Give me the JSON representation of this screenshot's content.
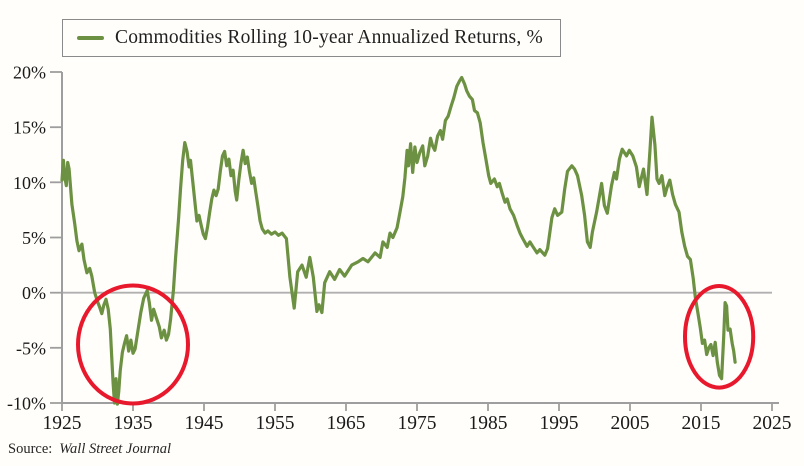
{
  "legend": {
    "label": "Commodities Rolling 10-year Annualized Returns, %"
  },
  "source": {
    "prefix": "Source:",
    "name": "Wall Street Journal"
  },
  "colors": {
    "line": "#6d9142",
    "annotation": "#e8192d",
    "axis": "#9e9e9e",
    "zero_line": "#b0b0b0",
    "text": "#1a1a1a",
    "background": "#fffefa"
  },
  "chart_data": {
    "type": "line",
    "title": "Commodities Rolling 10-year Annualized Returns, %",
    "xlabel": "",
    "ylabel": "",
    "x_range": [
      1925,
      2025
    ],
    "y_range": [
      -10,
      20
    ],
    "x_ticks": [
      1925,
      1935,
      1945,
      1955,
      1965,
      1975,
      1985,
      1995,
      2005,
      2015,
      2025
    ],
    "y_ticks": [
      {
        "value": 20,
        "label": "20%"
      },
      {
        "value": 15,
        "label": "15%"
      },
      {
        "value": 10,
        "label": "10%"
      },
      {
        "value": 5,
        "label": "5%"
      },
      {
        "value": 0,
        "label": "0%"
      },
      {
        "value": -5,
        "label": "-5%"
      },
      {
        "value": -10,
        "label": "-10%"
      }
    ],
    "grid": "zero-line-only",
    "legend_position": "top-left",
    "series": [
      {
        "name": "Commodities Rolling 10-year Annualized Returns, %",
        "color": "#6d9142",
        "points": [
          [
            1925.0,
            10.2
          ],
          [
            1925.2,
            12.0
          ],
          [
            1925.4,
            10.5
          ],
          [
            1925.6,
            9.7
          ],
          [
            1925.8,
            11.8
          ],
          [
            1926.0,
            11.2
          ],
          [
            1926.4,
            8.0
          ],
          [
            1926.8,
            6.2
          ],
          [
            1927.1,
            4.7
          ],
          [
            1927.4,
            3.8
          ],
          [
            1927.8,
            4.4
          ],
          [
            1928.1,
            3.0
          ],
          [
            1928.5,
            1.8
          ],
          [
            1928.9,
            2.2
          ],
          [
            1929.2,
            1.5
          ],
          [
            1929.6,
            0.0
          ],
          [
            1930.0,
            -0.8
          ],
          [
            1930.3,
            -1.3
          ],
          [
            1930.6,
            -1.9
          ],
          [
            1930.9,
            -1.1
          ],
          [
            1931.2,
            -0.6
          ],
          [
            1931.5,
            -1.5
          ],
          [
            1931.8,
            -3.3
          ],
          [
            1932.0,
            -5.8
          ],
          [
            1932.2,
            -8.2
          ],
          [
            1932.4,
            -10.0
          ],
          [
            1932.6,
            -7.8
          ],
          [
            1932.8,
            -10.1
          ],
          [
            1933.0,
            -8.9
          ],
          [
            1933.2,
            -7.1
          ],
          [
            1933.5,
            -5.4
          ],
          [
            1933.8,
            -4.6
          ],
          [
            1934.1,
            -3.9
          ],
          [
            1934.4,
            -5.3
          ],
          [
            1934.7,
            -4.3
          ],
          [
            1935.0,
            -5.5
          ],
          [
            1935.3,
            -5.1
          ],
          [
            1935.7,
            -3.4
          ],
          [
            1936.1,
            -1.8
          ],
          [
            1936.5,
            -0.5
          ],
          [
            1937.0,
            0.2
          ],
          [
            1937.3,
            -0.9
          ],
          [
            1937.6,
            -2.5
          ],
          [
            1937.9,
            -1.5
          ],
          [
            1938.3,
            -2.3
          ],
          [
            1938.7,
            -3.1
          ],
          [
            1939.0,
            -4.1
          ],
          [
            1939.4,
            -3.4
          ],
          [
            1939.7,
            -4.3
          ],
          [
            1940.0,
            -3.8
          ],
          [
            1940.3,
            -2.4
          ],
          [
            1940.7,
            0.3
          ],
          [
            1941.0,
            3.2
          ],
          [
            1941.4,
            6.5
          ],
          [
            1941.7,
            9.5
          ],
          [
            1942.0,
            12.0
          ],
          [
            1942.3,
            13.6
          ],
          [
            1942.6,
            12.8
          ],
          [
            1942.9,
            11.4
          ],
          [
            1943.1,
            12.0
          ],
          [
            1943.4,
            10.2
          ],
          [
            1943.7,
            8.3
          ],
          [
            1944.0,
            6.5
          ],
          [
            1944.3,
            7.0
          ],
          [
            1944.6,
            6.1
          ],
          [
            1944.9,
            5.3
          ],
          [
            1945.2,
            4.9
          ],
          [
            1945.5,
            6.0
          ],
          [
            1945.8,
            7.3
          ],
          [
            1946.1,
            8.5
          ],
          [
            1946.4,
            9.3
          ],
          [
            1946.7,
            8.8
          ],
          [
            1947.0,
            9.4
          ],
          [
            1947.3,
            11.0
          ],
          [
            1947.6,
            12.4
          ],
          [
            1947.9,
            12.8
          ],
          [
            1948.2,
            11.5
          ],
          [
            1948.5,
            12.1
          ],
          [
            1948.8,
            10.6
          ],
          [
            1949.1,
            11.1
          ],
          [
            1949.4,
            9.2
          ],
          [
            1949.6,
            8.4
          ],
          [
            1949.9,
            10.2
          ],
          [
            1950.2,
            11.7
          ],
          [
            1950.5,
            12.9
          ],
          [
            1950.8,
            11.7
          ],
          [
            1951.1,
            12.3
          ],
          [
            1951.4,
            11.0
          ],
          [
            1951.7,
            9.9
          ],
          [
            1952.0,
            10.4
          ],
          [
            1952.3,
            9.1
          ],
          [
            1952.6,
            7.8
          ],
          [
            1952.9,
            6.5
          ],
          [
            1953.2,
            5.8
          ],
          [
            1953.6,
            5.4
          ],
          [
            1954.0,
            5.6
          ],
          [
            1954.5,
            5.3
          ],
          [
            1955.0,
            5.5
          ],
          [
            1955.5,
            5.2
          ],
          [
            1956.0,
            5.4
          ],
          [
            1956.6,
            4.9
          ],
          [
            1957.1,
            1.4
          ],
          [
            1957.7,
            -1.4
          ],
          [
            1958.2,
            1.9
          ],
          [
            1958.8,
            2.5
          ],
          [
            1959.4,
            1.4
          ],
          [
            1959.9,
            3.2
          ],
          [
            1960.4,
            1.4
          ],
          [
            1960.9,
            -1.7
          ],
          [
            1961.2,
            -1.1
          ],
          [
            1961.6,
            -1.8
          ],
          [
            1962.0,
            0.9
          ],
          [
            1962.7,
            1.9
          ],
          [
            1963.4,
            1.2
          ],
          [
            1964.1,
            2.1
          ],
          [
            1964.8,
            1.5
          ],
          [
            1965.8,
            2.5
          ],
          [
            1966.7,
            2.8
          ],
          [
            1967.4,
            3.1
          ],
          [
            1968.1,
            2.8
          ],
          [
            1969.1,
            3.6
          ],
          [
            1969.8,
            3.2
          ],
          [
            1970.2,
            4.6
          ],
          [
            1970.8,
            4.1
          ],
          [
            1971.2,
            5.4
          ],
          [
            1971.6,
            5.0
          ],
          [
            1972.2,
            5.9
          ],
          [
            1972.6,
            7.3
          ],
          [
            1973.0,
            8.7
          ],
          [
            1973.3,
            10.4
          ],
          [
            1973.6,
            12.9
          ],
          [
            1973.8,
            11.5
          ],
          [
            1974.1,
            13.5
          ],
          [
            1974.4,
            10.9
          ],
          [
            1974.7,
            13.2
          ],
          [
            1975.0,
            11.8
          ],
          [
            1975.4,
            12.7
          ],
          [
            1975.8,
            13.3
          ],
          [
            1976.1,
            11.5
          ],
          [
            1976.5,
            12.4
          ],
          [
            1976.9,
            14.0
          ],
          [
            1977.2,
            13.3
          ],
          [
            1977.5,
            12.9
          ],
          [
            1977.9,
            14.2
          ],
          [
            1978.3,
            14.7
          ],
          [
            1978.6,
            13.9
          ],
          [
            1979.0,
            15.6
          ],
          [
            1979.4,
            16.0
          ],
          [
            1979.8,
            16.9
          ],
          [
            1980.2,
            17.7
          ],
          [
            1980.6,
            18.7
          ],
          [
            1981.0,
            19.2
          ],
          [
            1981.3,
            19.5
          ],
          [
            1981.7,
            18.9
          ],
          [
            1982.0,
            18.3
          ],
          [
            1982.4,
            17.8
          ],
          [
            1982.8,
            17.5
          ],
          [
            1983.1,
            16.5
          ],
          [
            1983.5,
            16.3
          ],
          [
            1983.9,
            15.4
          ],
          [
            1984.3,
            13.6
          ],
          [
            1984.7,
            12.1
          ],
          [
            1985.1,
            10.6
          ],
          [
            1985.4,
            9.9
          ],
          [
            1985.9,
            10.3
          ],
          [
            1986.3,
            9.6
          ],
          [
            1986.6,
            9.9
          ],
          [
            1987.0,
            9.0
          ],
          [
            1987.4,
            8.2
          ],
          [
            1987.7,
            8.5
          ],
          [
            1988.1,
            7.6
          ],
          [
            1988.6,
            7.0
          ],
          [
            1989.1,
            6.1
          ],
          [
            1989.5,
            5.4
          ],
          [
            1989.9,
            4.9
          ],
          [
            1990.5,
            4.2
          ],
          [
            1990.9,
            4.6
          ],
          [
            1991.3,
            4.2
          ],
          [
            1991.9,
            3.6
          ],
          [
            1992.3,
            3.9
          ],
          [
            1993.0,
            3.4
          ],
          [
            1993.4,
            4.0
          ],
          [
            1994.0,
            6.8
          ],
          [
            1994.4,
            7.6
          ],
          [
            1994.8,
            7.0
          ],
          [
            1995.4,
            7.3
          ],
          [
            1995.8,
            9.4
          ],
          [
            1996.2,
            11.0
          ],
          [
            1996.8,
            11.5
          ],
          [
            1997.2,
            11.2
          ],
          [
            1997.6,
            10.6
          ],
          [
            1998.2,
            8.8
          ],
          [
            1998.6,
            7.0
          ],
          [
            1999.0,
            4.6
          ],
          [
            1999.4,
            4.1
          ],
          [
            1999.7,
            5.5
          ],
          [
            2000.3,
            7.3
          ],
          [
            2000.7,
            8.8
          ],
          [
            2001.0,
            9.9
          ],
          [
            2001.4,
            7.9
          ],
          [
            2001.8,
            7.2
          ],
          [
            2002.4,
            9.7
          ],
          [
            2002.8,
            10.9
          ],
          [
            2003.1,
            10.3
          ],
          [
            2003.5,
            12.1
          ],
          [
            2003.9,
            13.0
          ],
          [
            2004.5,
            12.4
          ],
          [
            2004.9,
            12.9
          ],
          [
            2005.4,
            12.4
          ],
          [
            2005.9,
            11.4
          ],
          [
            2006.3,
            9.6
          ],
          [
            2006.9,
            11.2
          ],
          [
            2007.4,
            8.9
          ],
          [
            2007.8,
            12.8
          ],
          [
            2008.1,
            15.9
          ],
          [
            2008.5,
            13.4
          ],
          [
            2008.8,
            10.3
          ],
          [
            2009.1,
            9.9
          ],
          [
            2009.5,
            10.6
          ],
          [
            2009.9,
            8.8
          ],
          [
            2010.2,
            9.5
          ],
          [
            2010.6,
            10.2
          ],
          [
            2011.0,
            8.9
          ],
          [
            2011.4,
            8.0
          ],
          [
            2011.9,
            7.3
          ],
          [
            2012.3,
            5.5
          ],
          [
            2012.7,
            4.2
          ],
          [
            2013.1,
            3.3
          ],
          [
            2013.5,
            3.0
          ],
          [
            2013.9,
            1.3
          ],
          [
            2014.2,
            -0.4
          ],
          [
            2014.6,
            -2.0
          ],
          [
            2014.9,
            -3.2
          ],
          [
            2015.2,
            -4.6
          ],
          [
            2015.5,
            -4.3
          ],
          [
            2015.8,
            -5.6
          ],
          [
            2016.1,
            -5.0
          ],
          [
            2016.4,
            -4.7
          ],
          [
            2016.7,
            -5.7
          ],
          [
            2017.0,
            -4.5
          ],
          [
            2017.3,
            -6.3
          ],
          [
            2017.6,
            -7.5
          ],
          [
            2017.9,
            -7.8
          ],
          [
            2018.2,
            -4.0
          ],
          [
            2018.4,
            -0.9
          ],
          [
            2018.6,
            -1.2
          ],
          [
            2018.8,
            -3.4
          ],
          [
            2019.1,
            -3.3
          ],
          [
            2019.4,
            -4.6
          ],
          [
            2019.6,
            -5.3
          ],
          [
            2019.8,
            -6.3
          ]
        ]
      }
    ],
    "annotations": [
      {
        "id": "ellipse-1930s-trough",
        "type": "ellipse",
        "cx_year": 1935.0,
        "cy_value": -4.7,
        "rx_years": 7.75,
        "ry_values": 5.35,
        "color": "#e8192d"
      },
      {
        "id": "ellipse-2010s-trough",
        "type": "ellipse",
        "cx_year": 2017.55,
        "cy_value": -4.0,
        "rx_years": 4.8,
        "ry_values": 4.6,
        "color": "#e8192d"
      }
    ]
  }
}
